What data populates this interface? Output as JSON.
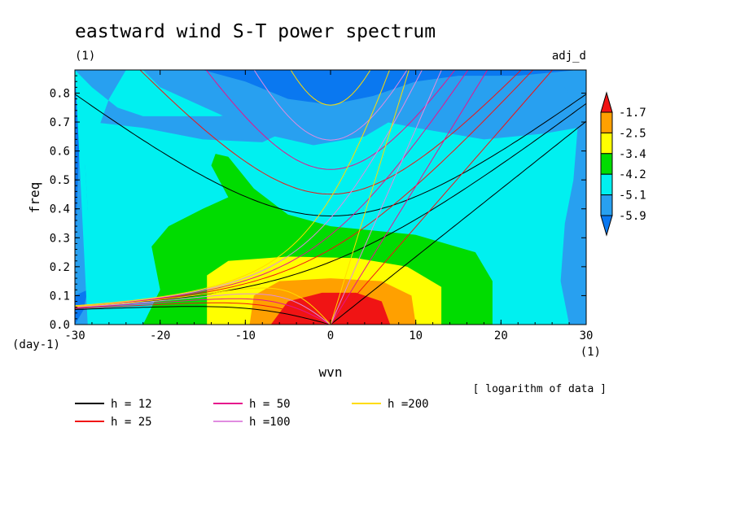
{
  "chart_data": {
    "type": "heatmap",
    "title": "eastward wind S-T power spectrum",
    "subtitle": "(1)",
    "tag": "adj_d",
    "xlabel": "wvn",
    "ylabel": "freq",
    "x_unit": "(1)",
    "y_unit": "(day-1)",
    "xlim": [
      -30,
      30
    ],
    "ylim": [
      0,
      0.88
    ],
    "x_ticks": [
      -30,
      -20,
      -10,
      0,
      10,
      20,
      30
    ],
    "x_tick_labels": [
      "-30",
      "-20",
      "-10",
      "0",
      "10",
      "20",
      "30"
    ],
    "y_ticks": [
      0.0,
      0.1,
      0.2,
      0.3,
      0.4,
      0.5,
      0.6,
      0.7,
      0.8
    ],
    "y_tick_labels": [
      "0.0",
      "0.1",
      "0.2",
      "0.3",
      "0.4",
      "0.5",
      "0.6",
      "0.7",
      "0.8"
    ],
    "note": "[ logarithm of data ]",
    "colorbar": {
      "levels": [
        -5.9,
        -5.1,
        -4.2,
        -3.4,
        -2.5,
        -1.7
      ],
      "level_labels": [
        "-5.9",
        "-5.1",
        "-4.2",
        "-3.4",
        "-2.5",
        "-1.7"
      ],
      "colors": [
        "#0a78f0",
        "#28a0f0",
        "#00f0f0",
        "#00dc00",
        "#ffff00",
        "#ffa000",
        "#f01414"
      ]
    },
    "dispersion_curves": [
      {
        "label": "h = 12",
        "h": 12,
        "color": "#000000"
      },
      {
        "label": "h = 25",
        "h": 25,
        "color": "#f01414"
      },
      {
        "label": "h = 50",
        "h": 50,
        "color": "#e6148c"
      },
      {
        "label": "h =100",
        "h": 100,
        "color": "#e08ce0"
      },
      {
        "label": "h =200",
        "h": 200,
        "color": "#ffdc00"
      }
    ]
  }
}
